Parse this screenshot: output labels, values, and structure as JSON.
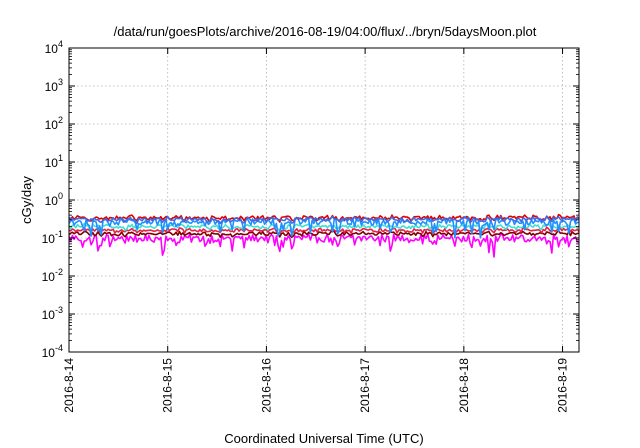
{
  "chart_data": {
    "type": "line",
    "title": "/data/run/goesPlots/archive/2016-08-19/04:00/flux/../bryn/5daysMoon.plot",
    "xlabel": "Coordinated Universal Time (UTC)",
    "ylabel": "cGy/day",
    "yscale": "log",
    "ylim": [
      0.0001,
      10000
    ],
    "xlim": [
      "2016-08-14 00:00",
      "2016-08-19 04:00"
    ],
    "grid": true,
    "x_ticks": [
      "2016-8-14",
      "2016-8-15",
      "2016-8-16",
      "2016-8-17",
      "2016-8-18",
      "2016-8-19"
    ],
    "y_ticks": [
      {
        "value": 0.0001,
        "base": "10",
        "exp": "-4"
      },
      {
        "value": 0.001,
        "base": "10",
        "exp": "-3"
      },
      {
        "value": 0.01,
        "base": "10",
        "exp": "-2"
      },
      {
        "value": 0.1,
        "base": "10",
        "exp": "-1"
      },
      {
        "value": 1,
        "base": "10",
        "exp": "0"
      },
      {
        "value": 10,
        "base": "10",
        "exp": "1"
      },
      {
        "value": 100,
        "base": "10",
        "exp": "2"
      },
      {
        "value": 1000,
        "base": "10",
        "exp": "3"
      },
      {
        "value": 10000,
        "base": "10",
        "exp": "4"
      }
    ],
    "series": [
      {
        "color": "#ff00ff",
        "level": 0.1,
        "variation": 0.3,
        "dips": true
      },
      {
        "color": "#800000",
        "level": 0.13,
        "variation": 0.12,
        "dips": false
      },
      {
        "color": "#e8204a",
        "level": 0.16,
        "variation": 0.12,
        "dips": false
      },
      {
        "color": "#40e0d0",
        "level": 0.2,
        "variation": 0.15,
        "dips": false
      },
      {
        "color": "#1e90ff",
        "level": 0.27,
        "variation": 0.25,
        "dips": true
      },
      {
        "color": "#e00000",
        "level": 0.34,
        "variation": 0.15,
        "dips": false
      },
      {
        "color": "#4169e1",
        "level": 0.31,
        "variation": 0.15,
        "dips": false
      }
    ]
  }
}
